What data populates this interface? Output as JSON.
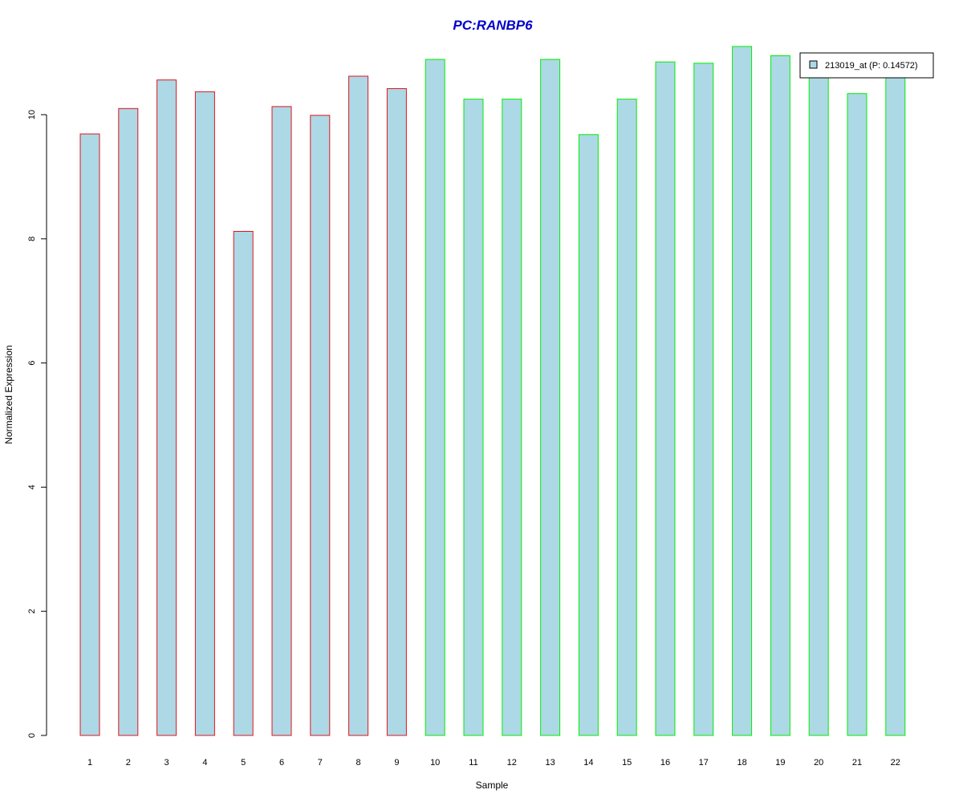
{
  "chart_data": {
    "type": "bar",
    "title": "PC:RANBP6",
    "xlabel": "Sample",
    "ylabel": "Normalized Expression",
    "categories": [
      "1",
      "2",
      "3",
      "4",
      "5",
      "6",
      "7",
      "8",
      "9",
      "10",
      "11",
      "12",
      "13",
      "14",
      "15",
      "16",
      "17",
      "18",
      "19",
      "20",
      "21",
      "22"
    ],
    "series": [
      {
        "name": "213019_at (P: 0.14572)",
        "values": [
          9.69,
          10.1,
          10.56,
          10.37,
          8.12,
          10.13,
          9.99,
          10.62,
          10.42,
          10.89,
          10.25,
          10.25,
          10.89,
          9.68,
          10.25,
          10.85,
          10.83,
          11.1,
          10.95,
          10.7,
          10.34,
          10.7
        ]
      }
    ],
    "group_border_colors": [
      "#e0151c",
      "#e0151c",
      "#e0151c",
      "#e0151c",
      "#e0151c",
      "#e0151c",
      "#e0151c",
      "#e0151c",
      "#e0151c",
      "#00ee00",
      "#00ee00",
      "#00ee00",
      "#00ee00",
      "#00ee00",
      "#00ee00",
      "#00ee00",
      "#00ee00",
      "#00ee00",
      "#00ee00",
      "#00ee00",
      "#00ee00",
      "#00ee00"
    ],
    "bar_fill": "#add8e6",
    "title_color": "#0000cd",
    "yticks": [
      0,
      2,
      4,
      6,
      8,
      10
    ],
    "ylim": [
      0,
      11.2
    ],
    "grid": false,
    "legend_position": "top-right"
  }
}
